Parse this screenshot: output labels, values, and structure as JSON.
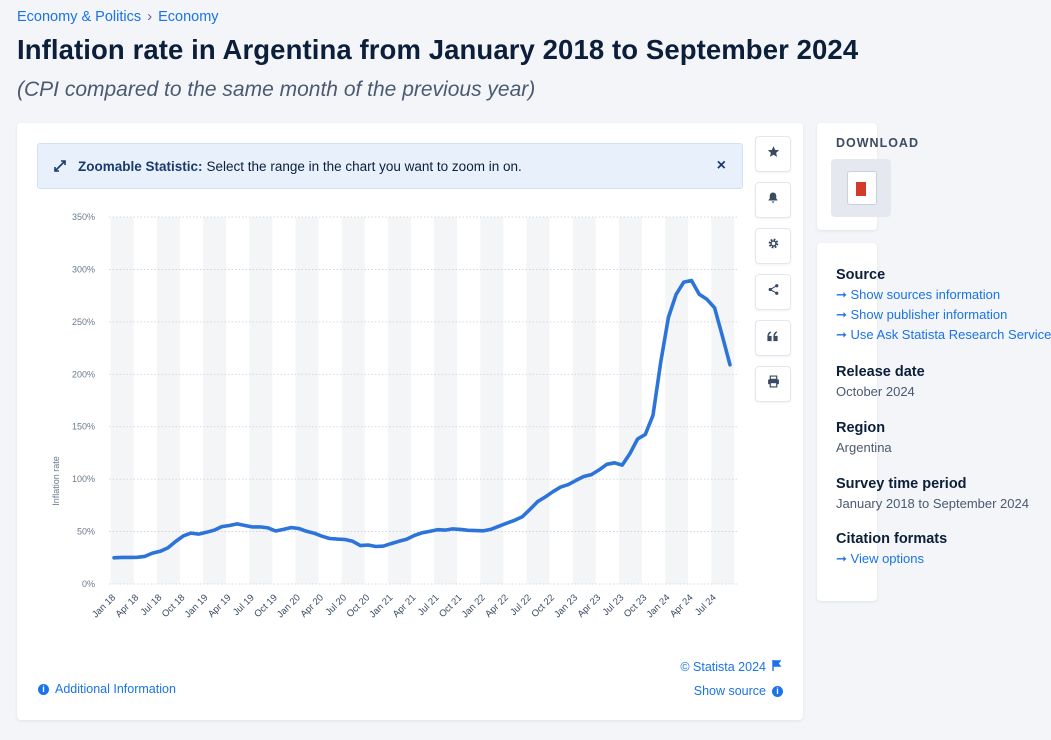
{
  "breadcrumb": {
    "items": [
      "Economy & Politics",
      "Economy"
    ],
    "separator": "›"
  },
  "title": "Inflation rate in Argentina from January 2018 to September 2024",
  "subtitle": "(CPI compared to the same month of the previous year)",
  "zoom_banner": {
    "bold": "Zoomable Statistic:",
    "text": "Select the range in the chart you want to zoom in on.",
    "close": "×"
  },
  "tools": [
    {
      "name": "favorite-star-icon"
    },
    {
      "name": "notification-bell-icon"
    },
    {
      "name": "settings-gear-icon"
    },
    {
      "name": "share-icon"
    },
    {
      "name": "cite-quote-icon"
    },
    {
      "name": "print-icon"
    }
  ],
  "footer": {
    "additional_info": "Additional Information",
    "copyright": "© Statista 2024",
    "show_source": "Show source"
  },
  "right_panel": {
    "download_label": "DOWNLOAD",
    "sections": [
      {
        "heading": "Source",
        "links": [
          "Show sources information",
          "Show publisher information",
          "Use Ask Statista Research Service"
        ]
      },
      {
        "heading": "Release date",
        "text": "October 2024"
      },
      {
        "heading": "Region",
        "text": "Argentina"
      },
      {
        "heading": "Survey time period",
        "text": "January 2018 to September 2024"
      },
      {
        "heading": "Citation formats",
        "links": [
          "View options"
        ]
      }
    ]
  },
  "colors": {
    "line": "#2d74da",
    "accent": "#1a73e8",
    "title": "#0b1e3a"
  },
  "chart_data": {
    "type": "line",
    "title": "Inflation rate in Argentina from January 2018 to September 2024",
    "ylabel": "Inflation rate",
    "xlabel": "",
    "ylim": [
      0,
      350
    ],
    "yticks": [
      "0%",
      "50%",
      "100%",
      "150%",
      "200%",
      "250%",
      "300%",
      "350%"
    ],
    "ytick_values": [
      0,
      50,
      100,
      150,
      200,
      250,
      300,
      350
    ],
    "xticks": [
      "Jan 18",
      "Apr 18",
      "Jul 18",
      "Oct 18",
      "Jan 19",
      "Apr 19",
      "Jul 19",
      "Oct 19",
      "Jan 20",
      "Apr 20",
      "Jul 20",
      "Oct 20",
      "Jan 21",
      "Apr 21",
      "Jul 21",
      "Oct 21",
      "Jan 22",
      "Apr 22",
      "Jul 22",
      "Oct 22",
      "Jan 23",
      "Apr 23",
      "Jul 23",
      "Oct 23",
      "Jan 24",
      "Apr 24",
      "Jul 24"
    ],
    "series": [
      {
        "name": "Inflation rate",
        "start": "Jan 2018",
        "values": [
          25.0,
          25.4,
          25.4,
          25.5,
          26.3,
          29.5,
          31.2,
          34.4,
          40.5,
          45.9,
          48.5,
          47.6,
          49.3,
          51.3,
          54.7,
          55.8,
          57.3,
          55.8,
          54.4,
          54.5,
          53.5,
          50.5,
          52.1,
          53.8,
          52.9,
          50.3,
          48.4,
          45.6,
          43.4,
          42.8,
          42.4,
          40.7,
          36.6,
          37.2,
          35.8,
          36.1,
          38.5,
          40.7,
          42.6,
          46.3,
          48.8,
          50.2,
          51.8,
          51.4,
          52.5,
          52.1,
          51.2,
          50.9,
          50.7,
          52.3,
          55.1,
          58.0,
          60.7,
          64.0,
          71.0,
          78.5,
          83.0,
          88.0,
          92.4,
          94.8,
          98.8,
          102.5,
          104.3,
          108.8,
          114.2,
          115.6,
          113.4,
          124.4,
          138.3,
          142.7,
          160.9,
          211.4,
          254.2,
          276.2,
          287.9,
          289.4,
          276.4,
          271.5,
          263.4,
          236.7,
          209.0
        ]
      }
    ]
  }
}
